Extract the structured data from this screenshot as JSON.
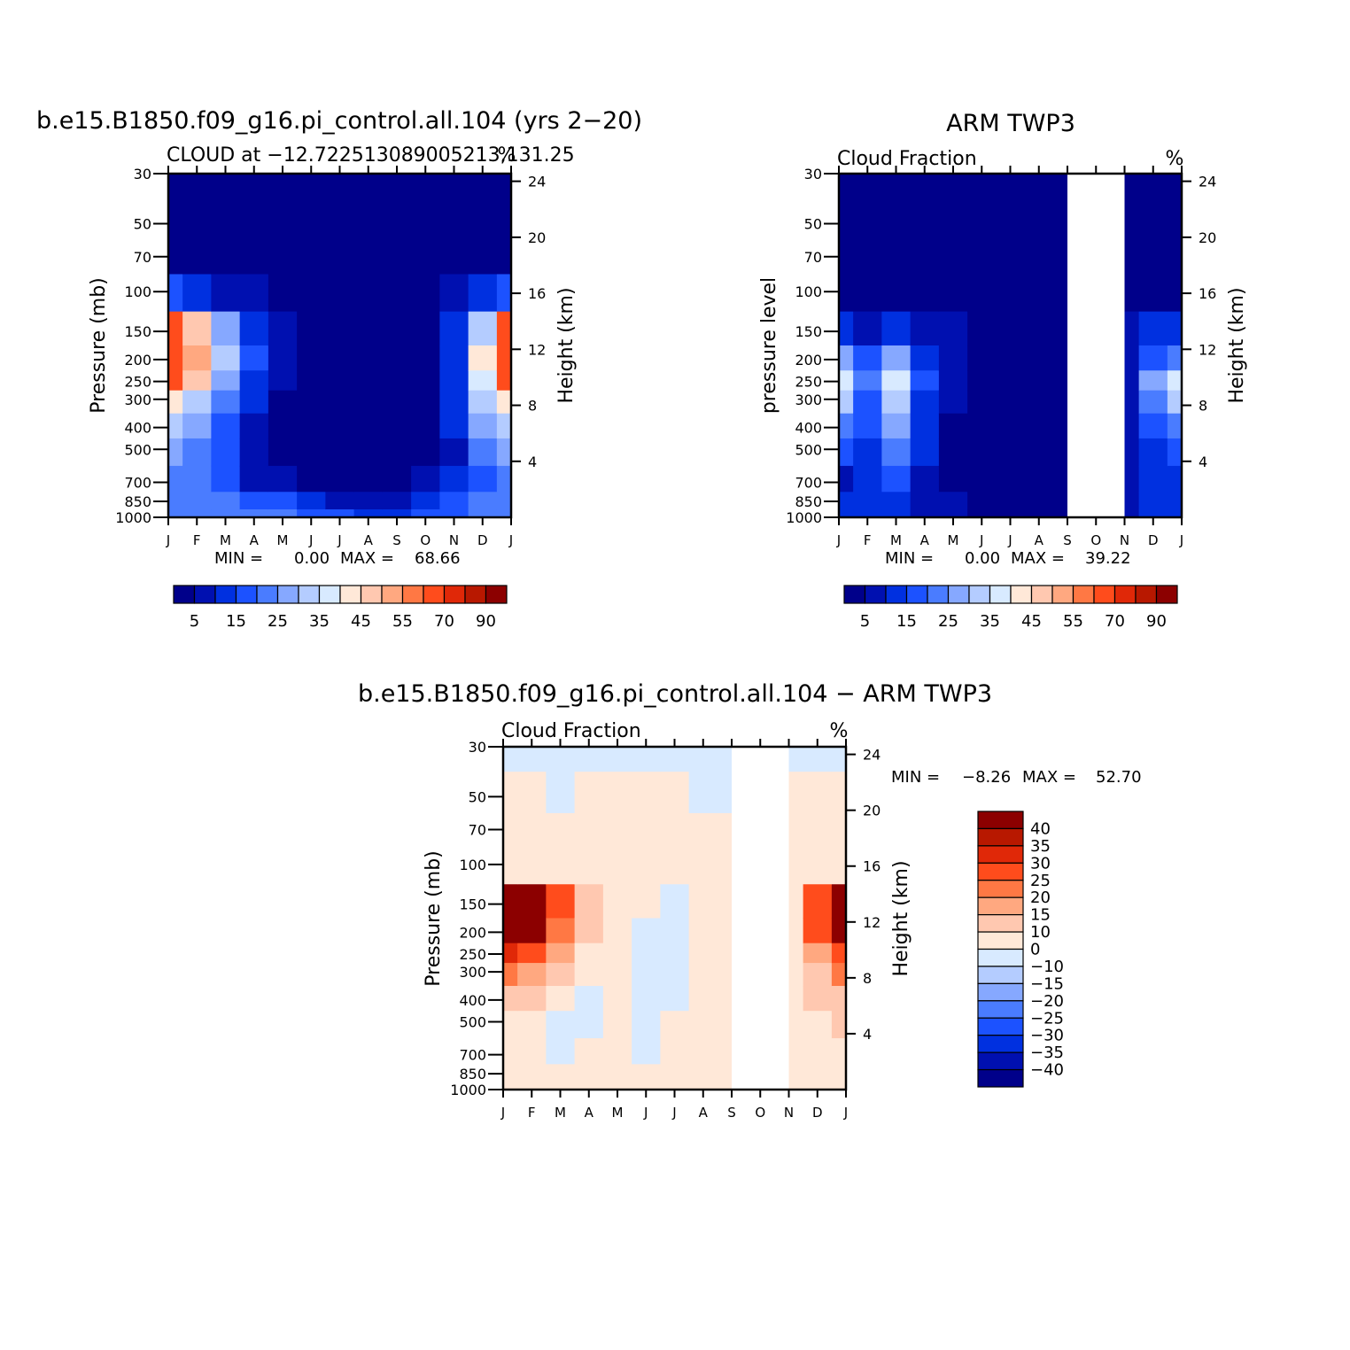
{
  "months": [
    "J",
    "F",
    "M",
    "A",
    "M",
    "J",
    "J",
    "A",
    "S",
    "O",
    "N",
    "D",
    "J"
  ],
  "pressure_ticks": [
    "30",
    "50",
    "70",
    "100",
    "150",
    "200",
    "250",
    "300",
    "400",
    "500",
    "700",
    "850",
    "1000"
  ],
  "height_ticks": [
    "24",
    "20",
    "16",
    "12",
    "8",
    "4"
  ],
  "abs_colors": [
    "#00008a",
    "#0010b0",
    "#0030e0",
    "#1c52ff",
    "#4a7cff",
    "#86a8ff",
    "#b4ccff",
    "#d8eaff",
    "#ffe8d8",
    "#ffc8b0",
    "#ffa880",
    "#ff7844",
    "#ff4c1c",
    "#e02808",
    "#b81800",
    "#8c0000"
  ],
  "abs_labels": [
    "5",
    "15",
    "25",
    "35",
    "45",
    "55",
    "70",
    "90"
  ],
  "diff_colors": [
    "#00008a",
    "#0010b0",
    "#0030e0",
    "#1c52ff",
    "#4a7cff",
    "#86a8ff",
    "#b4ccff",
    "#d8eaff",
    "#ffe8d8",
    "#ffc8b0",
    "#ffa880",
    "#ff7844",
    "#ff4c1c",
    "#e02808",
    "#b81800",
    "#8c0000"
  ],
  "diff_labels": [
    "40",
    "35",
    "30",
    "25",
    "20",
    "15",
    "10",
    "0",
    "−10",
    "−15",
    "−20",
    "−25",
    "−30",
    "−35",
    "−40"
  ],
  "chart_data": [
    {
      "type": "heatmap",
      "title": "b.e15.B1850.f09_g16.pi_control.all.104 (yrs 2−20)",
      "subtitle": "CLOUD at −12.722513089005213,131.25",
      "units": "%",
      "ylabel": "Pressure (mb)",
      "y2label": "Height (km)",
      "min_label": "MIN =",
      "min_value": "0.00",
      "max_label": "MAX =",
      "max_value": "68.66",
      "min": 0.0,
      "max": 68.66,
      "x": [
        "J",
        "F",
        "M",
        "A",
        "M",
        "J",
        "J",
        "A",
        "S",
        "O",
        "N",
        "D",
        "J"
      ],
      "y": [
        "30",
        "50",
        "70",
        "100",
        "150",
        "200",
        "250",
        "300",
        "400",
        "500",
        "700",
        "850",
        "1000"
      ],
      "z": [
        [
          0,
          0,
          0,
          0,
          0,
          0,
          0,
          0,
          0,
          0,
          0,
          0,
          0
        ],
        [
          0,
          0,
          0,
          0,
          0,
          0,
          0,
          0,
          0,
          0,
          0,
          0,
          0
        ],
        [
          0,
          0,
          0,
          0,
          0,
          0,
          0,
          0,
          0,
          0,
          0,
          0,
          0
        ],
        [
          15,
          12,
          8,
          5,
          0,
          0,
          0,
          0,
          0,
          2,
          5,
          10,
          15
        ],
        [
          60,
          45,
          25,
          12,
          5,
          0,
          0,
          0,
          0,
          3,
          10,
          30,
          60
        ],
        [
          68,
          52,
          30,
          15,
          5,
          0,
          0,
          0,
          0,
          0,
          10,
          40,
          68
        ],
        [
          60,
          45,
          25,
          12,
          5,
          0,
          0,
          0,
          0,
          0,
          10,
          35,
          60
        ],
        [
          40,
          32,
          22,
          10,
          3,
          0,
          0,
          0,
          0,
          0,
          10,
          30,
          40
        ],
        [
          30,
          26,
          18,
          8,
          3,
          0,
          0,
          0,
          0,
          0,
          10,
          25,
          30
        ],
        [
          25,
          22,
          15,
          7,
          2,
          0,
          0,
          0,
          0,
          0,
          8,
          20,
          25
        ],
        [
          20,
          20,
          15,
          8,
          5,
          3,
          3,
          2,
          2,
          5,
          10,
          18,
          20
        ],
        [
          20,
          20,
          20,
          18,
          15,
          10,
          8,
          5,
          5,
          10,
          15,
          20,
          20
        ],
        [
          20,
          20,
          20,
          20,
          20,
          18,
          15,
          12,
          12,
          15,
          18,
          20,
          20
        ]
      ]
    },
    {
      "type": "heatmap",
      "title": "ARM TWP3",
      "subtitle": "Cloud Fraction",
      "units": "%",
      "ylabel": "pressure level",
      "y2label": "Height (km)",
      "min_label": "MIN =",
      "min_value": "0.00",
      "max_label": "MAX =",
      "max_value": "39.22",
      "min": 0.0,
      "max": 39.22,
      "x": [
        "J",
        "F",
        "M",
        "A",
        "M",
        "J",
        "J",
        "A",
        "S",
        "O",
        "N",
        "D",
        "J"
      ],
      "y": [
        "30",
        "50",
        "70",
        "100",
        "150",
        "200",
        "250",
        "300",
        "400",
        "500",
        "700",
        "850",
        "1000"
      ],
      "missing_months": [
        "O"
      ],
      "z": [
        [
          0,
          0,
          0,
          0,
          0,
          0,
          0,
          0,
          0,
          null,
          0,
          0,
          0
        ],
        [
          0,
          0,
          0,
          0,
          0,
          0,
          0,
          0,
          0,
          null,
          0,
          0,
          0
        ],
        [
          0,
          0,
          0,
          0,
          0,
          0,
          0,
          0,
          0,
          null,
          0,
          0,
          0
        ],
        [
          0,
          2,
          4,
          2,
          0,
          0,
          0,
          0,
          0,
          null,
          0,
          0,
          0
        ],
        [
          10,
          8,
          12,
          8,
          5,
          0,
          0,
          0,
          0,
          null,
          5,
          10,
          12
        ],
        [
          25,
          15,
          25,
          10,
          5,
          0,
          0,
          0,
          0,
          null,
          5,
          15,
          20
        ],
        [
          38,
          22,
          35,
          15,
          5,
          0,
          0,
          0,
          0,
          null,
          8,
          25,
          38
        ],
        [
          30,
          18,
          30,
          12,
          5,
          0,
          0,
          0,
          0,
          null,
          8,
          22,
          30
        ],
        [
          20,
          15,
          25,
          10,
          3,
          0,
          0,
          0,
          0,
          null,
          8,
          15,
          20
        ],
        [
          15,
          10,
          20,
          10,
          3,
          0,
          0,
          0,
          0,
          null,
          8,
          12,
          15
        ],
        [
          8,
          10,
          15,
          8,
          2,
          1,
          0,
          0,
          0,
          null,
          8,
          10,
          10
        ],
        [
          10,
          10,
          10,
          8,
          5,
          2,
          0,
          0,
          0,
          null,
          8,
          10,
          10
        ],
        [
          10,
          10,
          10,
          8,
          5,
          3,
          0,
          0,
          0,
          null,
          8,
          10,
          10
        ]
      ]
    },
    {
      "type": "heatmap",
      "title": "b.e15.B1850.f09_g16.pi_control.all.104 − ARM TWP3",
      "subtitle": "Cloud Fraction",
      "units": "%",
      "ylabel": "Pressure (mb)",
      "y2label": "Height (km)",
      "min_label": "MIN =",
      "min_value": "−8.26",
      "max_label": "MAX =",
      "max_value": "52.70",
      "min": -8.26,
      "max": 52.7,
      "x": [
        "J",
        "F",
        "M",
        "A",
        "M",
        "J",
        "J",
        "A",
        "S",
        "O",
        "N",
        "D",
        "J"
      ],
      "y": [
        "30",
        "50",
        "70",
        "100",
        "150",
        "200",
        "250",
        "300",
        "400",
        "500",
        "700",
        "850",
        "1000"
      ],
      "missing_months": [
        "O"
      ],
      "z": [
        [
          -2,
          -2,
          -2,
          -2,
          -2,
          -2,
          -2,
          -2,
          -2,
          null,
          -2,
          -2,
          -2
        ],
        [
          2,
          2,
          -2,
          2,
          2,
          2,
          2,
          -2,
          -2,
          null,
          2,
          2,
          2
        ],
        [
          2,
          2,
          2,
          2,
          2,
          2,
          2,
          2,
          2,
          null,
          2,
          2,
          2
        ],
        [
          8,
          5,
          4,
          3,
          2,
          2,
          2,
          2,
          2,
          null,
          3,
          5,
          8
        ],
        [
          50,
          45,
          25,
          12,
          8,
          2,
          -2,
          2,
          2,
          null,
          8,
          25,
          45
        ],
        [
          45,
          40,
          20,
          10,
          2,
          -2,
          -2,
          2,
          2,
          null,
          8,
          25,
          45
        ],
        [
          30,
          28,
          15,
          5,
          2,
          -2,
          -2,
          2,
          2,
          null,
          5,
          15,
          28
        ],
        [
          20,
          18,
          10,
          3,
          2,
          -2,
          -2,
          2,
          2,
          null,
          5,
          12,
          20
        ],
        [
          12,
          10,
          2,
          -2,
          2,
          -2,
          -2,
          2,
          2,
          null,
          5,
          10,
          12
        ],
        [
          8,
          5,
          -2,
          -2,
          2,
          -2,
          2,
          2,
          2,
          null,
          5,
          8,
          10
        ],
        [
          5,
          3,
          -2,
          2,
          2,
          -2,
          2,
          2,
          2,
          null,
          3,
          5,
          5
        ],
        [
          3,
          3,
          2,
          2,
          2,
          2,
          2,
          2,
          2,
          null,
          2,
          3,
          3
        ],
        [
          3,
          3,
          3,
          3,
          3,
          3,
          3,
          3,
          3,
          null,
          2,
          3,
          3
        ]
      ]
    }
  ]
}
